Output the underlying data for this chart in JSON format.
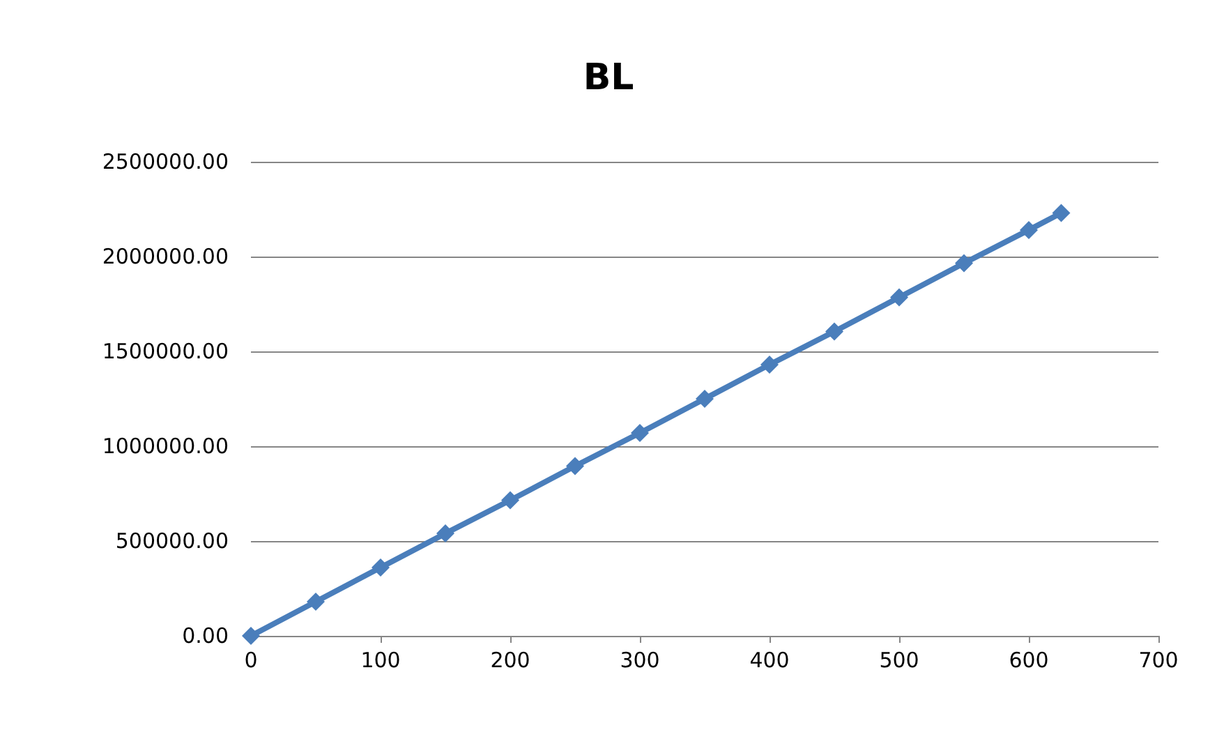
{
  "chart_data": {
    "type": "line",
    "title": "BL",
    "x": [
      0,
      50,
      100,
      150,
      200,
      250,
      300,
      350,
      400,
      450,
      500,
      550,
      600,
      625
    ],
    "series": [
      {
        "color": "#4a7ebb",
        "values": [
          0,
          180000,
          360000,
          540000,
          715000,
          895000,
          1070000,
          1250000,
          1430000,
          1605000,
          1785000,
          1965000,
          2140000,
          2230000
        ]
      }
    ],
    "xlim": [
      0,
      700
    ],
    "xticks": [
      0,
      100,
      200,
      300,
      400,
      500,
      600,
      700
    ],
    "ylim": [
      0,
      2500000
    ],
    "yticks": [
      {
        "value": 0,
        "label": "0.00"
      },
      {
        "value": 500000,
        "label": "500000.00"
      },
      {
        "value": 1000000,
        "label": "1000000.00"
      },
      {
        "value": 1500000,
        "label": "1500000.00"
      },
      {
        "value": 2000000,
        "label": "2000000.00"
      },
      {
        "value": 2500000,
        "label": "2500000.00"
      }
    ],
    "grid": "y",
    "marker": "diamond",
    "line_style": "solid"
  }
}
